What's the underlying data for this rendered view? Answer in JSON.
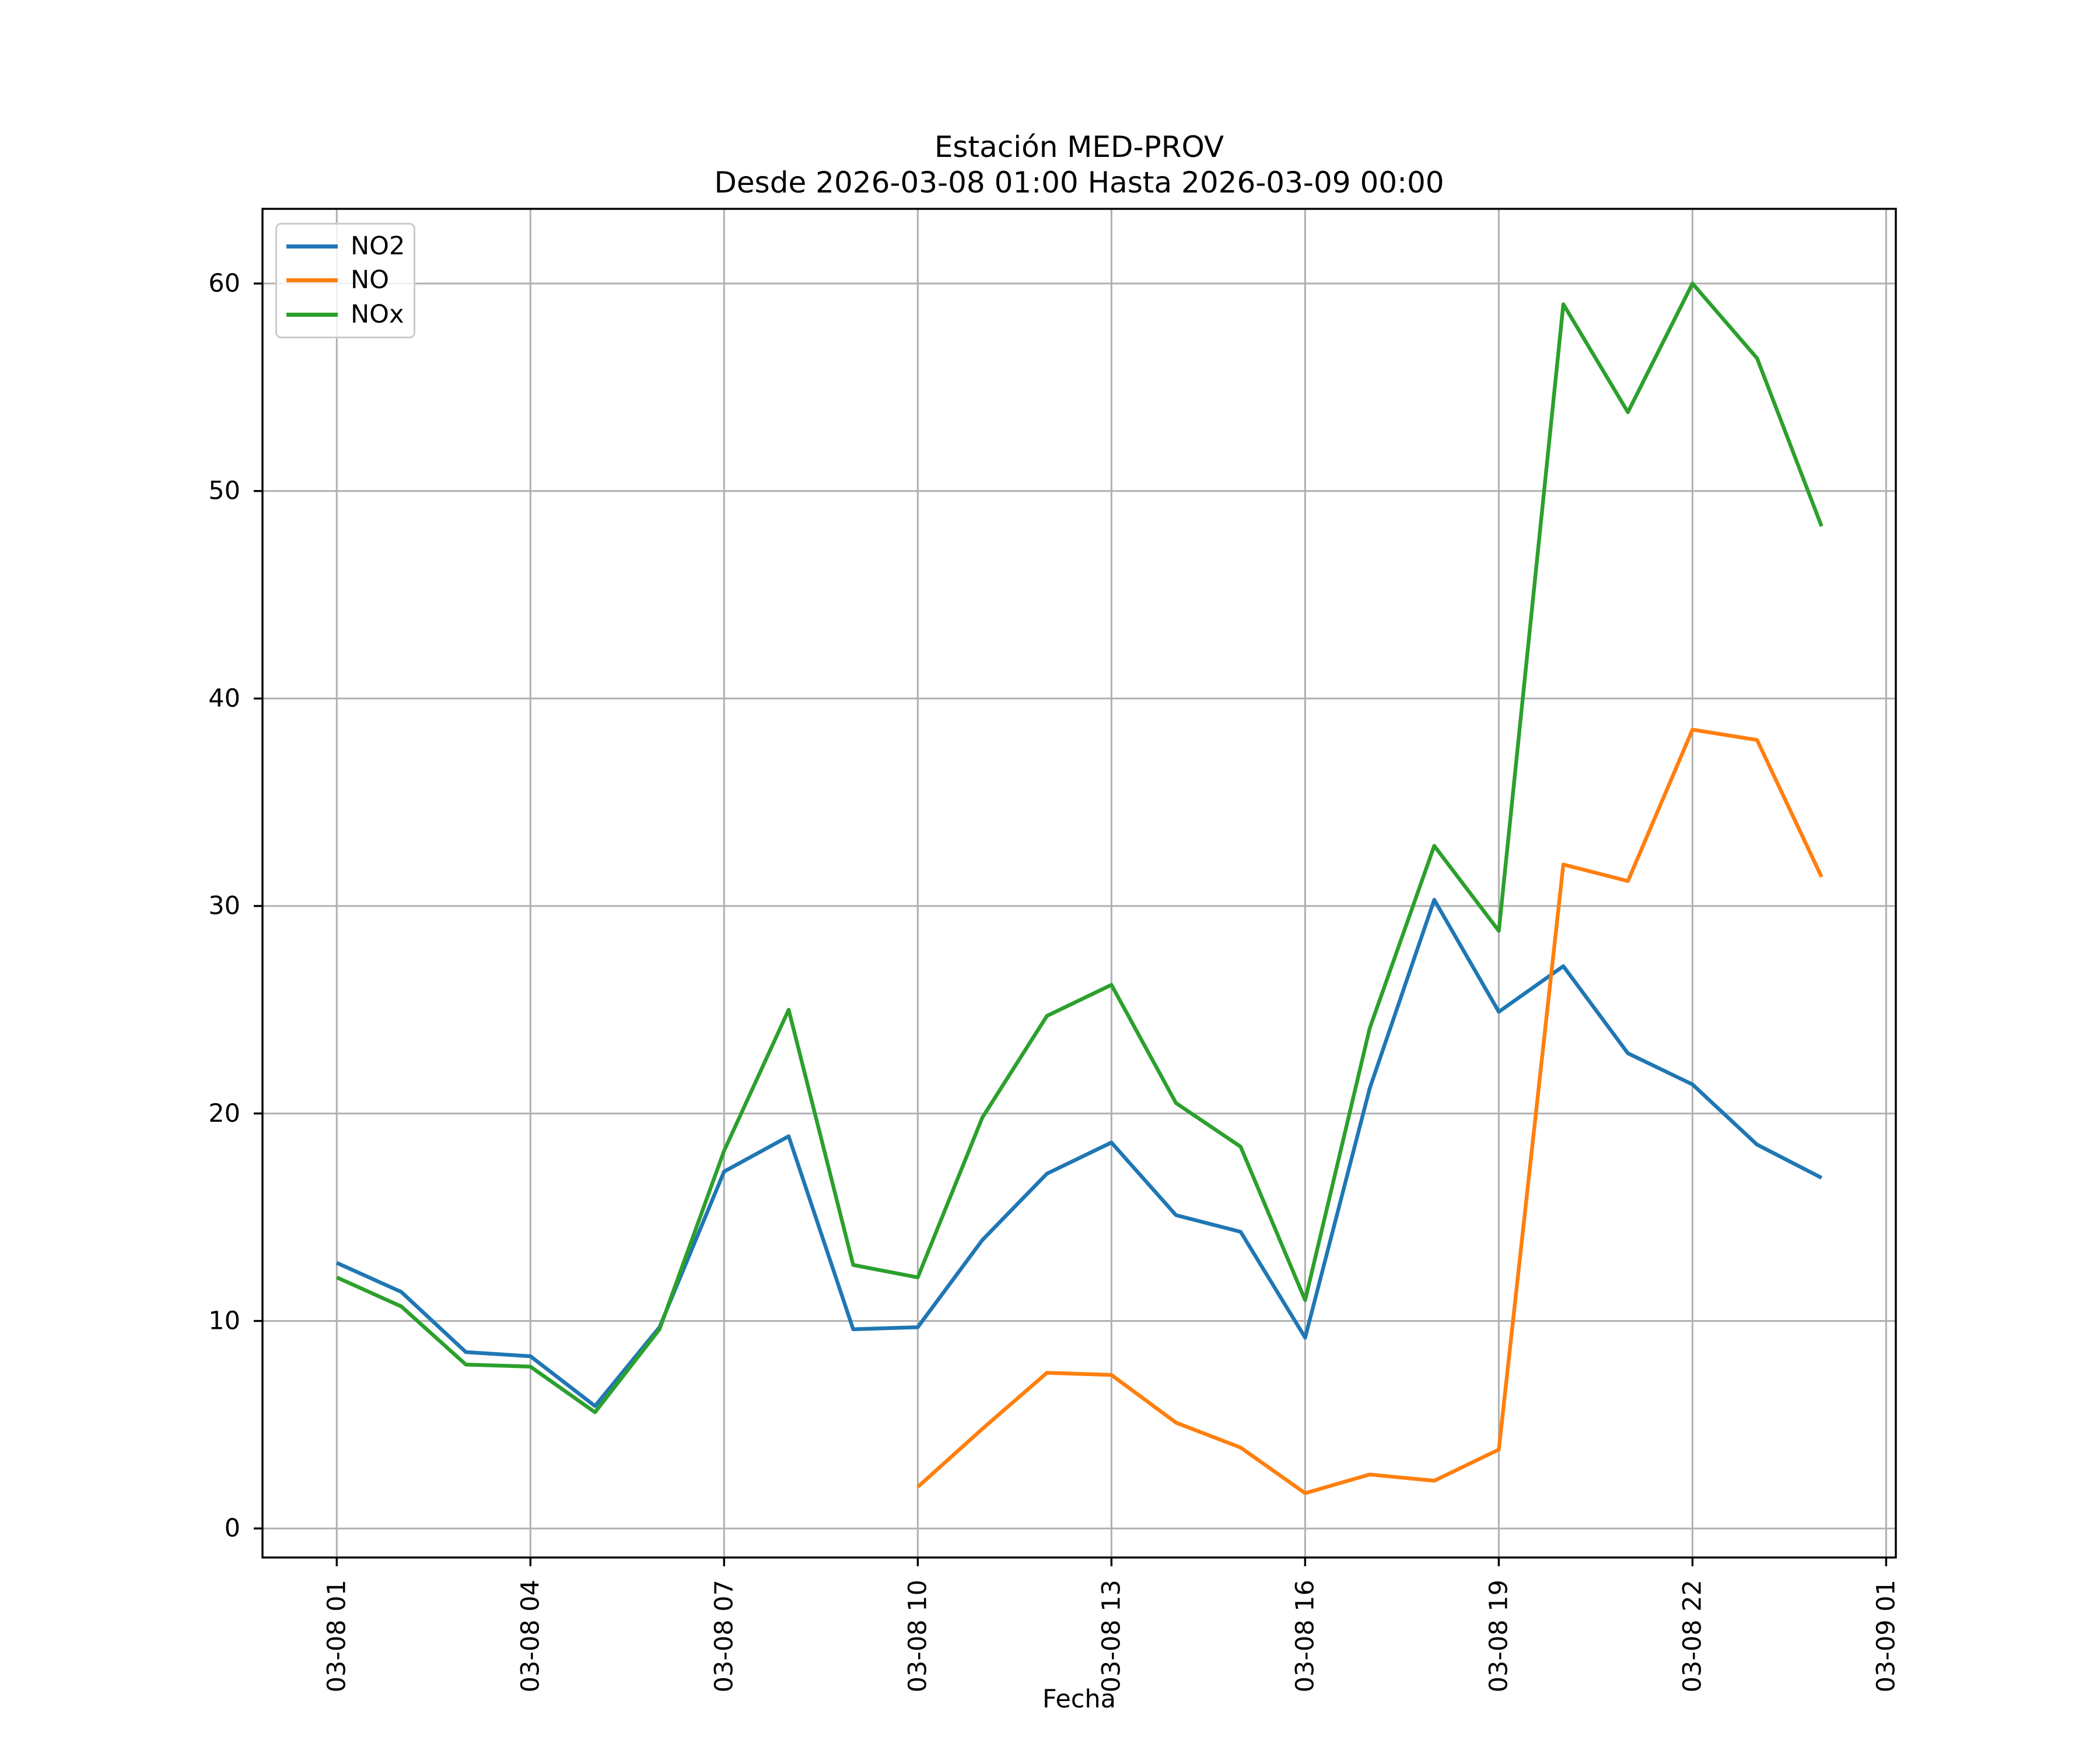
{
  "figure": {
    "title_line1": "Estación MED-PROV",
    "title_line2": "Desde 2026-03-08 01:00 Hasta 2026-03-09 00:00",
    "xlabel": "Fecha",
    "background_color": "#ffffff"
  },
  "chart_data": {
    "type": "line",
    "title": "Estación MED-PROV",
    "subtitle": "Desde 2026-03-08 01:00 Hasta 2026-03-09 00:00",
    "xlabel": "Fecha",
    "ylabel": "",
    "x_unit": "hours since 2026-03-08 01:00",
    "x": [
      0,
      1,
      2,
      3,
      4,
      5,
      6,
      7,
      8,
      9,
      10,
      11,
      12,
      13,
      14,
      15,
      16,
      17,
      18,
      19,
      20,
      21,
      22,
      23
    ],
    "series": [
      {
        "name": "NO2",
        "color": "#1f77b4",
        "values": [
          12.8,
          11.4,
          8.5,
          8.3,
          5.9,
          9.7,
          17.2,
          18.9,
          9.6,
          9.7,
          13.9,
          17.1,
          18.6,
          15.1,
          14.3,
          9.2,
          21.2,
          30.3,
          24.9,
          27.1,
          22.9,
          21.4,
          18.5,
          16.9
        ]
      },
      {
        "name": "NO",
        "color": "#ff7f0e",
        "values": [
          null,
          null,
          null,
          null,
          null,
          null,
          null,
          null,
          null,
          2.0,
          4.8,
          7.5,
          7.4,
          5.1,
          3.9,
          1.7,
          2.6,
          2.3,
          3.8,
          32.0,
          31.2,
          38.5,
          38.0,
          31.4
        ]
      },
      {
        "name": "NOx",
        "color": "#2ca02c",
        "values": [
          12.1,
          10.7,
          7.9,
          7.8,
          5.6,
          9.6,
          18.2,
          25.0,
          12.7,
          12.1,
          19.8,
          24.7,
          26.2,
          20.5,
          18.4,
          11.0,
          24.1,
          32.9,
          28.8,
          59.0,
          53.8,
          60.0,
          56.4,
          48.3
        ]
      }
    ],
    "xticks": {
      "positions": [
        0,
        3,
        6,
        9,
        12,
        15,
        18,
        21,
        24
      ],
      "labels": [
        "03-08 01",
        "03-08 04",
        "03-08 07",
        "03-08 10",
        "03-08 13",
        "03-08 16",
        "03-08 19",
        "03-08 22",
        "03-09 01"
      ],
      "rotation_deg": 90
    },
    "yticks": {
      "positions": [
        0,
        10,
        20,
        30,
        40,
        50,
        60
      ],
      "labels": [
        "0",
        "10",
        "20",
        "30",
        "40",
        "50",
        "60"
      ]
    },
    "xlim": [
      -1.15,
      24.15
    ],
    "ylim": [
      -1.4,
      63.6
    ],
    "grid": true,
    "grid_color": "#b0b0b0",
    "axes_edge_color": "#000000",
    "tick_color": "#000000",
    "text_color": "#000000",
    "legend": {
      "location": "upper left",
      "entries": [
        "NO2",
        "NO",
        "NOx"
      ]
    }
  }
}
